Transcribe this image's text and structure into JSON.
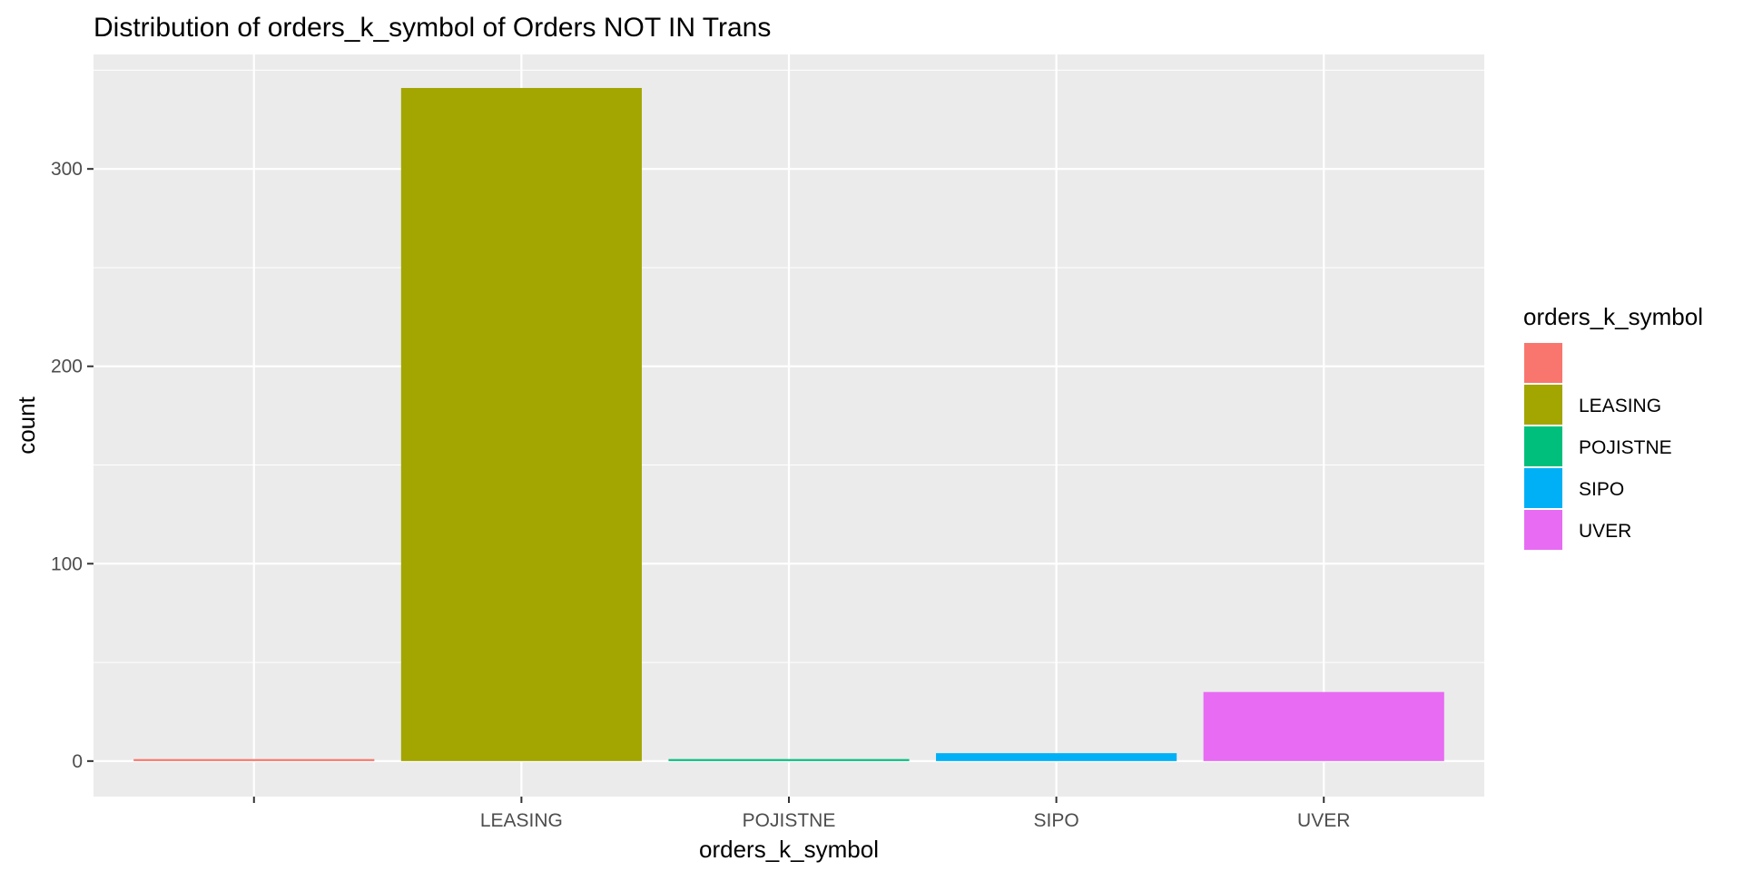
{
  "chart_data": {
    "type": "bar",
    "title": "Distribution of orders_k_symbol of Orders NOT IN Trans",
    "xlabel": "orders_k_symbol",
    "ylabel": "count",
    "categories": [
      "",
      "LEASING",
      "POJISTNE",
      "SIPO",
      "UVER"
    ],
    "values": [
      1,
      341,
      1,
      4,
      35
    ],
    "colors": [
      "#F8766D",
      "#A3A500",
      "#00BF7D",
      "#00B0F6",
      "#E76BF3"
    ],
    "ylim": [
      -18,
      358
    ],
    "yticks": [
      0,
      100,
      200,
      300
    ],
    "grid": true,
    "background": "#EBEBEB",
    "legend": {
      "title": "orders_k_symbol",
      "position": "right",
      "entries": [
        "",
        "LEASING",
        "POJISTNE",
        "SIPO",
        "UVER"
      ]
    }
  }
}
